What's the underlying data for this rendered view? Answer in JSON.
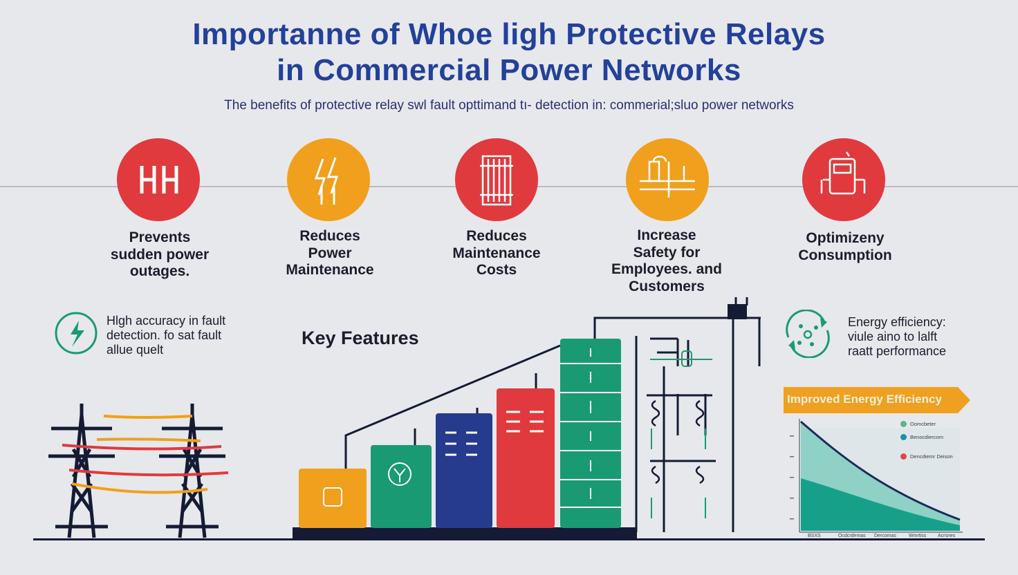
{
  "title_line1": "Importanne of Whoe ligh Protective Relays",
  "title_line2": "in Commercial Power Networks",
  "subtitle": "The benefits of protective relay swl fault opttimand tı- detection in: commerial;sluo power networks",
  "benefits": [
    {
      "icon": "relay-hh-icon",
      "color": "#e03a3e",
      "label_line1": "Prevents",
      "label_line2": "sudden power",
      "label_line3": "outages."
    },
    {
      "icon": "lightning-icon",
      "color": "#f0a01c",
      "label_line1": "Reduces",
      "label_line2": "Power",
      "label_line3": "Maintenance"
    },
    {
      "icon": "circuit-breaker-icon",
      "color": "#e03a3e",
      "label_line1": "Reduces",
      "label_line2": "Maintenance",
      "label_line3": "Costs"
    },
    {
      "icon": "substation-icon",
      "color": "#f0a01c",
      "label_line1": "Increase",
      "label_line2": "Safety for",
      "label_line3": "Employees. and",
      "label_line4": "Customers"
    },
    {
      "icon": "meter-icon",
      "color": "#e03a3e",
      "label_line1": "Optimizeny",
      "label_line2": "Consumption"
    }
  ],
  "left_note": {
    "line1": "Hlgh accuracy in fault",
    "line2": "detection. fo sat fault",
    "line3": "allue quelt"
  },
  "key_features": "Key Features",
  "right_note": {
    "line1": "Energy efficiency:",
    "line2": "viule aino to lalft",
    "line3": "raatt performance"
  },
  "efficiency_chart": {
    "banner": "Improved Energy Efficiency",
    "legend": [
      {
        "label": "Oomcbeter",
        "color": "#5fb38a"
      },
      {
        "label": "Benocdiercom",
        "color": "#1a8fb0"
      },
      {
        "label": "Dencdiemr Deison",
        "color": "#e04848"
      }
    ],
    "ticks": [
      "BSXS",
      "Ocdcrdemas",
      "Dercomas",
      "Wmrtiss",
      "Acrsnes"
    ],
    "colors": {
      "area_light": "#8fd1c4",
      "area_dark": "#16a08a",
      "curve": "#1e2a5a",
      "banner": "#f0a020"
    }
  },
  "colors": {
    "title": "#23409a",
    "red": "#e03a3e",
    "orange": "#f0a01c",
    "green": "#1a9a72",
    "navy": "#263a8e",
    "dark": "#141b33"
  }
}
